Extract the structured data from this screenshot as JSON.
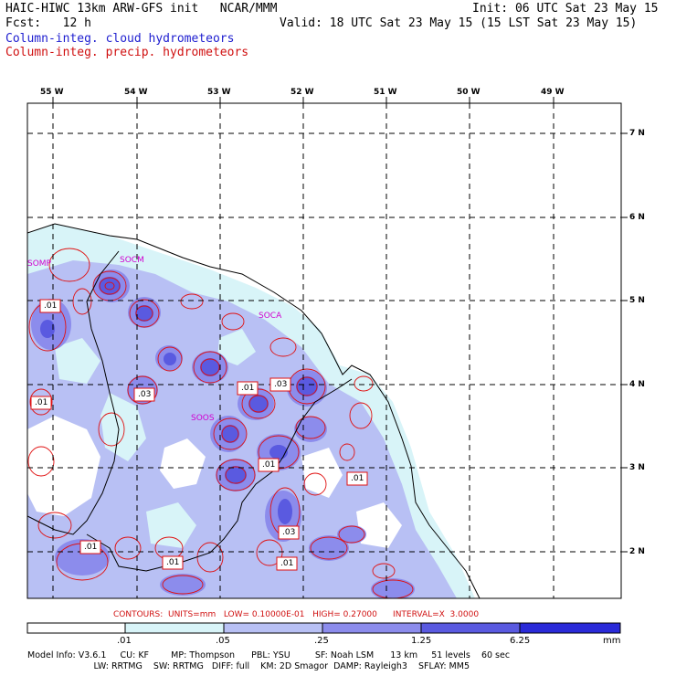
{
  "header": {
    "title": "HAIC-HIWC 13km ARW-GFS init   NCAR/MMM",
    "init": "Init: 06 UTC Sat 23 May 15",
    "fcst": "Fcst:   12 h",
    "valid": "Valid: 18 UTC Sat 23 May 15 (15 LST Sat 23 May 15)",
    "field_cloud": "Column-integ. cloud hydrometeors",
    "field_precip": "Column-integ. precip. hydrometeors"
  },
  "colors": {
    "cloud_label": "#2020d0",
    "precip_label": "#d01010",
    "shade_1": "#d8f4f8",
    "shade_2": "#b8c0f4",
    "shade_3": "#8c8cec",
    "shade_4": "#5a5ae0",
    "shade_5": "#2a2ad8",
    "contour": "#e01010",
    "station": "#d000d0"
  },
  "map": {
    "lon_labels": [
      "55 W",
      "54 W",
      "53 W",
      "52 W",
      "51 W",
      "50 W",
      "49 W"
    ],
    "lat_labels": [
      "7 N",
      "6 N",
      "5 N",
      "4 N",
      "3 N",
      "2 N"
    ],
    "stations": [
      "SOMP",
      "SOCM",
      "SOCA",
      "SOOS"
    ],
    "contour_labels": [
      ".01",
      ".01",
      ".03",
      ".01",
      ".03",
      ".01",
      ".01",
      ".01",
      ".03",
      ".01",
      ".01"
    ]
  },
  "contour_info": "CONTOURS:  UNITS=mm   LOW= 0.10000E-01   HIGH= 0.27000      INTERVAL=X  3.0000",
  "colorbar": {
    "ticks": [
      ".01",
      ".05",
      ".25",
      "1.25",
      "6.25"
    ],
    "units": "mm"
  },
  "model_info": {
    "line1": "Model Info: V3.6.1     CU: KF        MP: Thompson      PBL: YSU         SF: Noah LSM      13 km     51 levels    60 sec",
    "line2": "                        LW: RRTMG    SW: RRTMG   DIFF: full    KM: 2D Smagor  DAMP: Rayleigh3    SFLAY: MM5"
  }
}
